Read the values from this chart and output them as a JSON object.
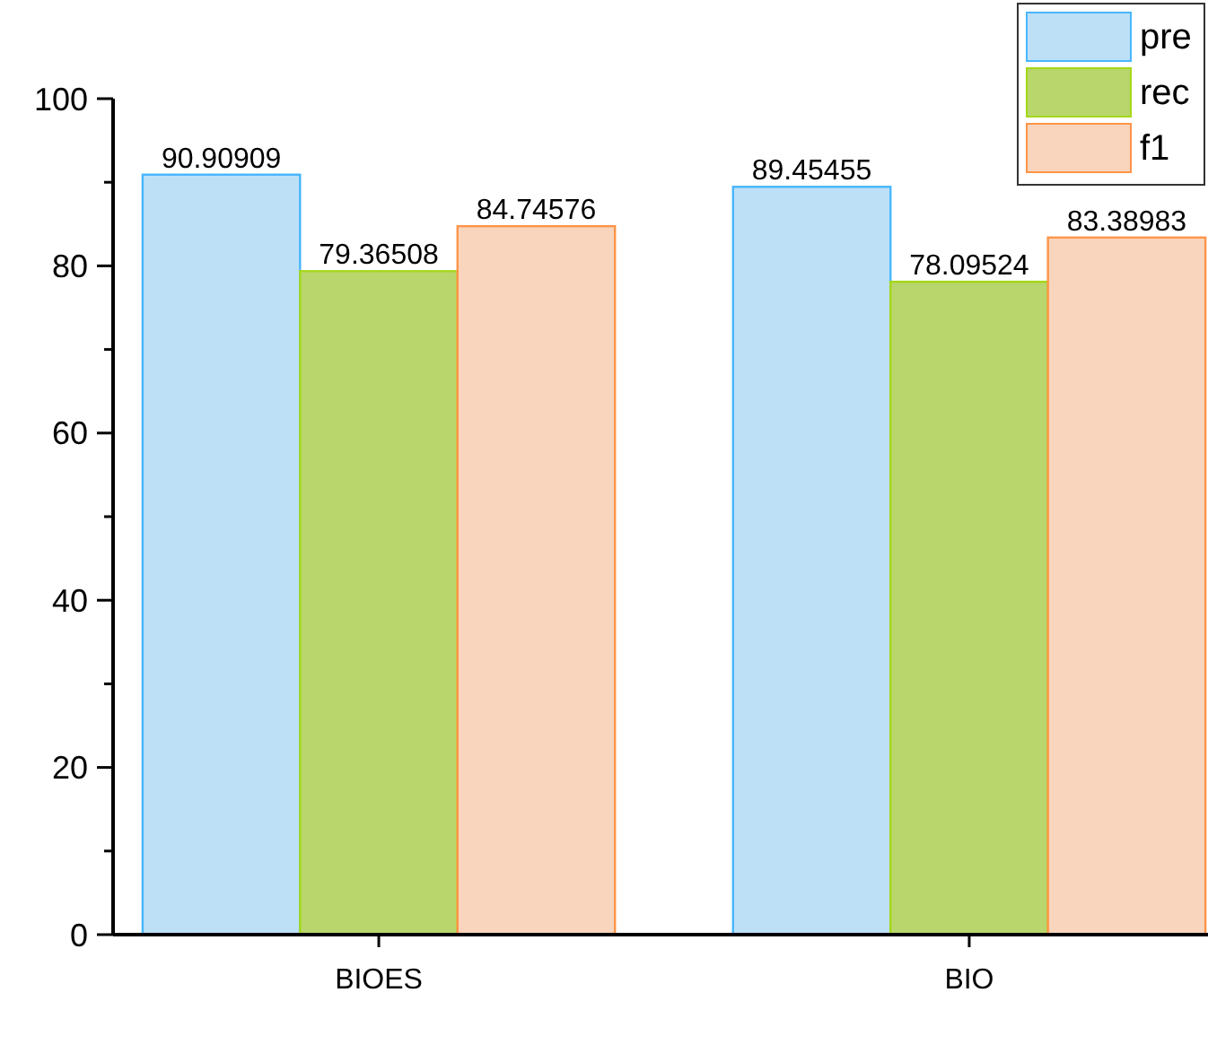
{
  "chart_data": {
    "type": "bar",
    "categories": [
      "BIOES",
      "BIO"
    ],
    "series": [
      {
        "name": "pre",
        "color": "#bde0f7",
        "values": [
          90.90909,
          89.45455
        ]
      },
      {
        "name": "rec",
        "color": "#b9d66c",
        "values": [
          79.36508,
          78.09524
        ]
      },
      {
        "name": "f1",
        "color": "#f8d5bc",
        "values": [
          84.74576,
          83.38983
        ]
      }
    ],
    "ylim": [
      0,
      100
    ],
    "yticks": [
      0,
      {
        "value": 10,
        "label": null
      },
      20,
      {
        "value": 30,
        "label": null
      },
      40,
      {
        "value": 50,
        "label": null
      },
      60,
      {
        "value": 70,
        "label": null
      },
      80,
      {
        "value": 90,
        "label": null
      },
      100
    ],
    "data_labels": true,
    "legend": "top right",
    "grid": false
  }
}
